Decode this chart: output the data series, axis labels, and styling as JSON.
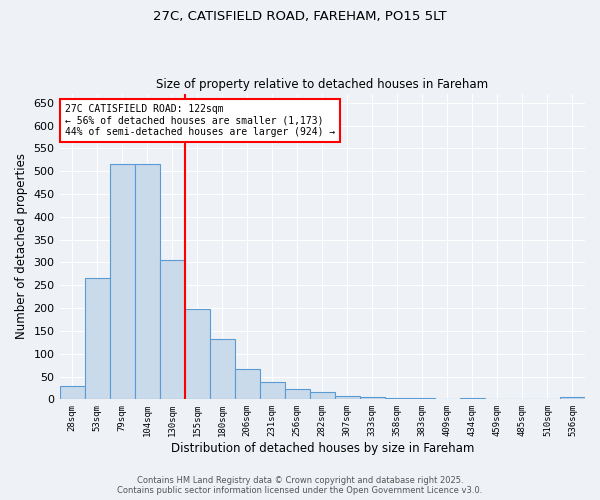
{
  "title1": "27C, CATISFIELD ROAD, FAREHAM, PO15 5LT",
  "title2": "Size of property relative to detached houses in Fareham",
  "xlabel": "Distribution of detached houses by size in Fareham",
  "ylabel": "Number of detached properties",
  "categories": [
    "28sqm",
    "53sqm",
    "79sqm",
    "104sqm",
    "130sqm",
    "155sqm",
    "180sqm",
    "206sqm",
    "231sqm",
    "256sqm",
    "282sqm",
    "307sqm",
    "333sqm",
    "358sqm",
    "383sqm",
    "409sqm",
    "434sqm",
    "459sqm",
    "485sqm",
    "510sqm",
    "536sqm"
  ],
  "values": [
    30,
    265,
    515,
    515,
    305,
    198,
    133,
    67,
    38,
    22,
    15,
    8,
    6,
    4,
    2,
    1,
    3,
    1,
    1,
    1,
    5
  ],
  "bar_color": "#c9daea",
  "bar_edge_color": "#5b9bd5",
  "vline_x": 4.5,
  "vline_color": "red",
  "annotation_text": "27C CATISFIELD ROAD: 122sqm\n← 56% of detached houses are smaller (1,173)\n44% of semi-detached houses are larger (924) →",
  "annotation_box_color": "white",
  "annotation_box_edge_color": "red",
  "ylim": [
    0,
    670
  ],
  "yticks": [
    0,
    50,
    100,
    150,
    200,
    250,
    300,
    350,
    400,
    450,
    500,
    550,
    600,
    650
  ],
  "footer1": "Contains HM Land Registry data © Crown copyright and database right 2025.",
  "footer2": "Contains public sector information licensed under the Open Government Licence v3.0.",
  "bg_color": "#eef2f7"
}
